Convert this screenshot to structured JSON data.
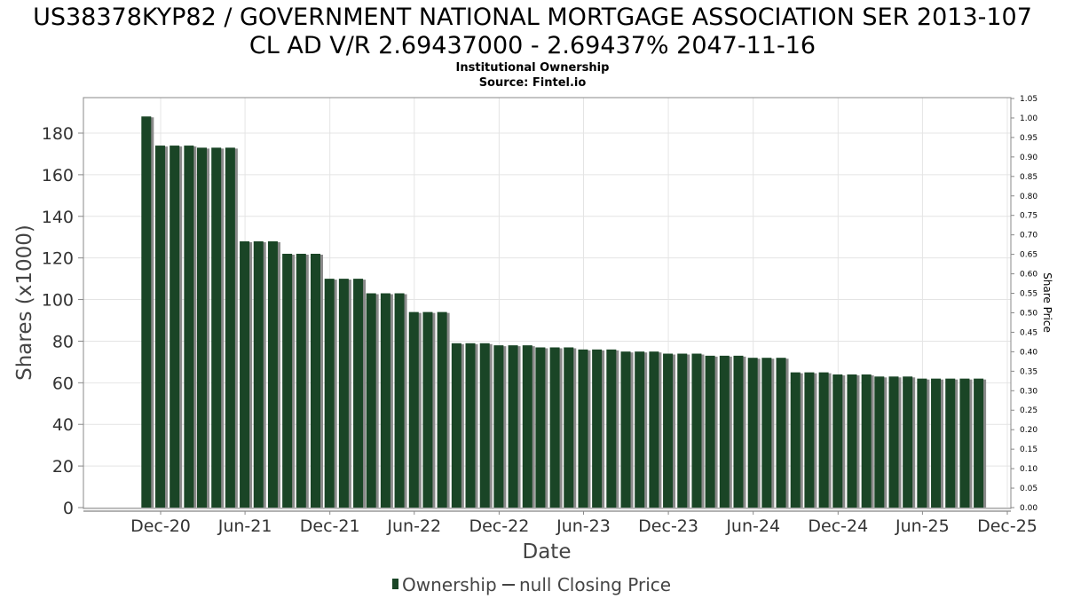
{
  "title_line1": "US38378KYP82 / GOVERNMENT NATIONAL MORTGAGE ASSOCIATION SER 2013-107",
  "title_line2": "CL AD V/R 2.69437000 - 2.69437% 2047-11-16",
  "subtitle_line1": "Institutional Ownership",
  "subtitle_line2": "Source: Fintel.io",
  "legend": {
    "ownership_label": "Ownership",
    "price_label": "null Closing Price"
  },
  "colors": {
    "bar": "#1a4526",
    "bar_shadow": "#8a8a8a",
    "grid": "#e4e4e4",
    "axis": "#888888"
  },
  "chart_data": {
    "type": "bar",
    "title": "US38378KYP82 / GOVERNMENT NATIONAL MORTGAGE ASSOCIATION SER 2013-107 CL AD V/R 2.69437000 - 2.69437% 2047-11-16",
    "xlabel": "Date",
    "ylabel": "Shares (x1000)",
    "y2label": "Share Price",
    "ylim": [
      0,
      196
    ],
    "y2lim": [
      0,
      1.05
    ],
    "xlim": [
      "2020-08-01",
      "2025-12-15"
    ],
    "x_ticks": [
      {
        "label": "Dec-20",
        "date": "2020-12-01"
      },
      {
        "label": "Jun-21",
        "date": "2021-06-01"
      },
      {
        "label": "Dec-21",
        "date": "2021-12-01"
      },
      {
        "label": "Jun-22",
        "date": "2022-06-01"
      },
      {
        "label": "Dec-22",
        "date": "2022-12-01"
      },
      {
        "label": "Jun-23",
        "date": "2023-06-01"
      },
      {
        "label": "Dec-23",
        "date": "2023-12-01"
      },
      {
        "label": "Jun-24",
        "date": "2024-06-01"
      },
      {
        "label": "Dec-24",
        "date": "2024-12-01"
      },
      {
        "label": "Jun-25",
        "date": "2025-06-01"
      },
      {
        "label": "Dec-25",
        "date": "2025-12-01"
      }
    ],
    "y_ticks": [
      0,
      20,
      40,
      60,
      80,
      100,
      120,
      140,
      160,
      180
    ],
    "y2_ticks": [
      "0.00",
      "0.05",
      "0.10",
      "0.15",
      "0.20",
      "0.25",
      "0.30",
      "0.35",
      "0.40",
      "0.45",
      "0.50",
      "0.55",
      "0.60",
      "0.65",
      "0.70",
      "0.75",
      "0.80",
      "0.85",
      "0.90",
      "0.95",
      "1.00",
      "1.05"
    ],
    "grid": true,
    "legend_position": "bottom",
    "series": [
      {
        "name": "Ownership",
        "x": [
          "2020-10-31",
          "2020-11-30",
          "2020-12-31",
          "2021-01-31",
          "2021-02-28",
          "2021-03-31",
          "2021-04-30",
          "2021-05-31",
          "2021-06-30",
          "2021-07-31",
          "2021-08-31",
          "2021-09-30",
          "2021-10-31",
          "2021-11-30",
          "2021-12-31",
          "2022-01-31",
          "2022-02-28",
          "2022-03-31",
          "2022-04-30",
          "2022-05-31",
          "2022-06-30",
          "2022-07-31",
          "2022-08-31",
          "2022-09-30",
          "2022-10-31",
          "2022-11-30",
          "2022-12-31",
          "2023-01-31",
          "2023-02-28",
          "2023-03-31",
          "2023-04-30",
          "2023-05-31",
          "2023-06-30",
          "2023-07-31",
          "2023-08-31",
          "2023-09-30",
          "2023-10-31",
          "2023-11-30",
          "2023-12-31",
          "2024-01-31",
          "2024-02-29",
          "2024-03-31",
          "2024-04-30",
          "2024-05-31",
          "2024-06-30",
          "2024-07-31",
          "2024-08-31",
          "2024-09-30",
          "2024-10-31",
          "2024-11-30",
          "2024-12-31",
          "2025-01-31",
          "2025-02-28",
          "2025-03-31",
          "2025-04-30",
          "2025-05-31",
          "2025-06-30",
          "2025-07-31",
          "2025-08-31",
          "2025-09-30"
        ],
        "values": [
          188,
          174,
          174,
          174,
          173,
          173,
          173,
          128,
          128,
          128,
          122,
          122,
          122,
          110,
          110,
          110,
          103,
          103,
          103,
          94,
          94,
          94,
          79,
          79,
          79,
          78,
          78,
          78,
          77,
          77,
          77,
          76,
          76,
          76,
          75,
          75,
          75,
          74,
          74,
          74,
          73,
          73,
          73,
          72,
          72,
          72,
          65,
          65,
          65,
          64,
          64,
          64,
          63,
          63,
          63,
          62,
          62,
          62,
          62,
          62
        ]
      }
    ]
  }
}
